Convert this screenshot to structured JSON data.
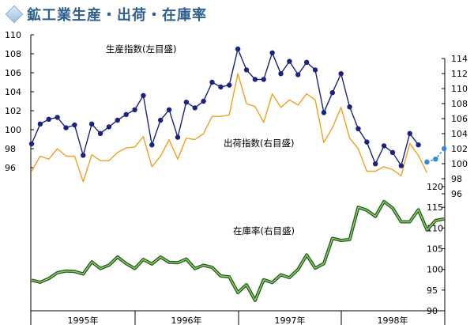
{
  "title": "鉱工業生産・出荷・在庫率",
  "chart_data": [
    {
      "type": "line",
      "label": "生産指数(左目盛)",
      "axis": "left",
      "ylim": [
        96,
        110
      ],
      "yticks": [
        96,
        98,
        100,
        102,
        104,
        106,
        108,
        110
      ],
      "color": "#1a237e",
      "marker": "circle",
      "values": [
        98.5,
        100.6,
        101.1,
        101.3,
        100.2,
        100.5,
        97.3,
        100.6,
        99.6,
        100.3,
        101.0,
        101.6,
        102.1,
        103.6,
        98.4,
        101.0,
        102.1,
        99.2,
        102.9,
        102.3,
        103.0,
        105.0,
        104.5,
        104.7,
        108.5,
        106.3,
        105.3,
        105.3,
        108.1,
        105.9,
        107.2,
        105.8,
        107.1,
        106.3,
        101.8,
        103.9,
        105.9,
        102.4,
        100.1,
        98.7,
        96.4,
        98.3,
        97.6,
        96.2,
        99.6,
        98.4
      ],
      "projection": [
        96.6,
        96.9,
        98.0
      ]
    },
    {
      "type": "line",
      "label": "出荷指数(右目盛)",
      "axis": "right-upper",
      "ylim": [
        96,
        114
      ],
      "yticks": [
        96,
        98,
        100,
        102,
        104,
        106,
        108,
        110,
        112,
        114
      ],
      "color": "#f0a020",
      "values": [
        99.0,
        101.0,
        100.6,
        102.0,
        101.0,
        101.0,
        97.6,
        101.2,
        100.4,
        100.4,
        101.5,
        102.1,
        102.2,
        103.6,
        99.6,
        101.0,
        103.2,
        100.6,
        103.4,
        103.2,
        104.0,
        106.3,
        106.3,
        106.5,
        112.0,
        108.0,
        107.6,
        105.5,
        109.3,
        107.5,
        108.5,
        107.8,
        109.3,
        108.5,
        102.8,
        104.8,
        107.5,
        103.4,
        102.0,
        99.0,
        99.0,
        99.6,
        99.2,
        98.4,
        102.7,
        101.1,
        98.8
      ]
    },
    {
      "type": "line",
      "label": "在庫率(右目盛)",
      "axis": "right-lower",
      "ylim": [
        90,
        120
      ],
      "yticks": [
        90,
        95,
        100,
        105,
        110,
        115,
        120
      ],
      "color": "#2e7d32",
      "values": [
        97.4,
        96.9,
        97.8,
        99.2,
        99.6,
        99.5,
        98.9,
        101.8,
        100.2,
        101.0,
        103.0,
        101.4,
        100.2,
        102.4,
        101.3,
        103.0,
        101.7,
        101.6,
        102.5,
        100.2,
        101.0,
        100.5,
        98.4,
        98.2,
        94.4,
        96.3,
        92.5,
        97.5,
        96.8,
        98.7,
        98.0,
        100.0,
        103.5,
        100.3,
        101.4,
        107.5,
        107.0,
        107.2,
        115.0,
        114.3,
        112.8,
        116.4,
        114.8,
        111.5,
        111.5,
        114.4,
        109.5,
        111.8,
        112.2
      ]
    }
  ],
  "x_axis": {
    "categories": [
      "1995年",
      "1996年",
      "1997年",
      "1998年"
    ]
  }
}
